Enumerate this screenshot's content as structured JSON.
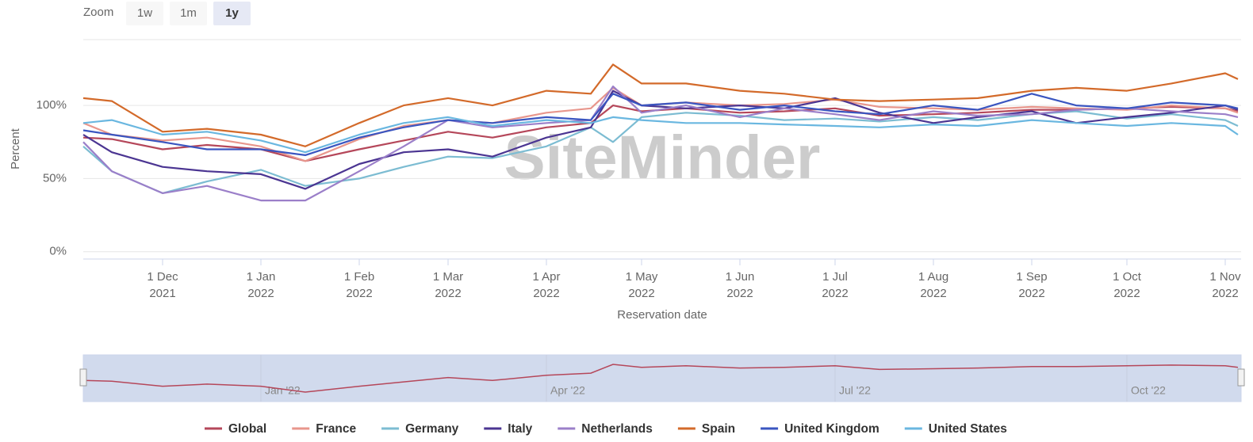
{
  "chart_data": {
    "type": "line",
    "zoom": {
      "label": "Zoom",
      "buttons": [
        "1w",
        "1m",
        "1y"
      ],
      "selected": 2
    },
    "watermark": "SiteMinder",
    "ylabel": "Percent",
    "xlabel": "Reservation date",
    "xlim": [
      "2021-11-06",
      "2022-11-06"
    ],
    "xticks": [
      {
        "value": "2021-12-01",
        "label": "1 Dec 2021"
      },
      {
        "value": "2022-01-01",
        "label": "1 Jan 2022"
      },
      {
        "value": "2022-02-01",
        "label": "1 Feb 2022"
      },
      {
        "value": "2022-03-01",
        "label": "1 Mar 2022"
      },
      {
        "value": "2022-04-01",
        "label": "1 Apr 2022"
      },
      {
        "value": "2022-05-01",
        "label": "1 May 2022"
      },
      {
        "value": "2022-06-01",
        "label": "1 Jun 2022"
      },
      {
        "value": "2022-07-01",
        "label": "1 Jul 2022"
      },
      {
        "value": "2022-08-01",
        "label": "1 Aug 2022"
      },
      {
        "value": "2022-09-01",
        "label": "1 Sep 2022"
      },
      {
        "value": "2022-10-01",
        "label": "1 Oct 2022"
      },
      {
        "value": "2022-11-01",
        "label": "1 Nov 2022"
      }
    ],
    "ylim": [
      -5,
      145
    ],
    "yticks": [
      {
        "value": 0,
        "label": "0%"
      },
      {
        "value": 50,
        "label": "50%"
      },
      {
        "value": 100,
        "label": "100%"
      }
    ],
    "grid": true,
    "x": [
      "2021-11-06",
      "2021-11-15",
      "2021-12-01",
      "2021-12-15",
      "2022-01-01",
      "2022-01-15",
      "2022-02-01",
      "2022-02-15",
      "2022-03-01",
      "2022-03-15",
      "2022-04-01",
      "2022-04-15",
      "2022-04-22",
      "2022-05-01",
      "2022-05-15",
      "2022-06-01",
      "2022-06-15",
      "2022-07-01",
      "2022-07-15",
      "2022-08-01",
      "2022-08-15",
      "2022-09-01",
      "2022-09-15",
      "2022-10-01",
      "2022-10-15",
      "2022-11-01",
      "2022-11-05"
    ],
    "series": [
      {
        "name": "Global",
        "color": "#b5475a",
        "values": [
          78,
          77,
          70,
          73,
          70,
          62,
          70,
          76,
          82,
          78,
          85,
          88,
          100,
          96,
          98,
          95,
          96,
          98,
          93,
          94,
          95,
          97,
          97,
          98,
          99,
          98,
          96
        ]
      },
      {
        "name": "France",
        "color": "#e8968c",
        "values": [
          88,
          80,
          76,
          78,
          72,
          62,
          77,
          86,
          90,
          88,
          95,
          98,
          112,
          100,
          102,
          100,
          101,
          104,
          99,
          98,
          97,
          99,
          98,
          97,
          100,
          98,
          95
        ]
      },
      {
        "name": "Germany",
        "color": "#7cbcd2",
        "values": [
          72,
          55,
          40,
          48,
          56,
          45,
          50,
          58,
          65,
          64,
          72,
          85,
          75,
          92,
          95,
          93,
          90,
          91,
          89,
          92,
          90,
          94,
          96,
          91,
          94,
          90,
          86
        ]
      },
      {
        "name": "Italy",
        "color": "#4b3592",
        "values": [
          80,
          68,
          58,
          55,
          53,
          43,
          60,
          68,
          70,
          65,
          78,
          85,
          110,
          100,
          98,
          100,
          98,
          105,
          95,
          88,
          92,
          96,
          88,
          92,
          95,
          100,
          97
        ]
      },
      {
        "name": "Netherlands",
        "color": "#9b7fc9",
        "values": [
          75,
          55,
          40,
          45,
          35,
          35,
          55,
          72,
          90,
          85,
          88,
          90,
          113,
          95,
          100,
          92,
          98,
          94,
          90,
          96,
          93,
          94,
          97,
          98,
          96,
          94,
          92
        ]
      },
      {
        "name": "Spain",
        "color": "#d36a2a",
        "values": [
          105,
          103,
          82,
          84,
          80,
          72,
          88,
          100,
          105,
          100,
          110,
          108,
          128,
          115,
          115,
          110,
          108,
          104,
          103,
          104,
          105,
          110,
          112,
          110,
          115,
          122,
          118
        ]
      },
      {
        "name": "United Kingdom",
        "color": "#3a55c0",
        "values": [
          83,
          80,
          75,
          70,
          70,
          66,
          78,
          85,
          90,
          88,
          92,
          90,
          108,
          100,
          102,
          97,
          100,
          96,
          94,
          100,
          97,
          108,
          100,
          98,
          102,
          100,
          98
        ]
      },
      {
        "name": "United States",
        "color": "#6ab7e0",
        "values": [
          88,
          90,
          80,
          82,
          76,
          68,
          80,
          88,
          92,
          86,
          90,
          88,
          92,
          90,
          88,
          88,
          87,
          86,
          85,
          87,
          86,
          90,
          88,
          86,
          88,
          86,
          80
        ]
      }
    ],
    "navigator": {
      "xticks": [
        {
          "value": "2022-01-01",
          "label": "Jan '22"
        },
        {
          "value": "2022-04-01",
          "label": "Apr '22"
        },
        {
          "value": "2022-07-01",
          "label": "Jul '22"
        },
        {
          "value": "2022-10-01",
          "label": "Oct '22"
        }
      ]
    }
  }
}
